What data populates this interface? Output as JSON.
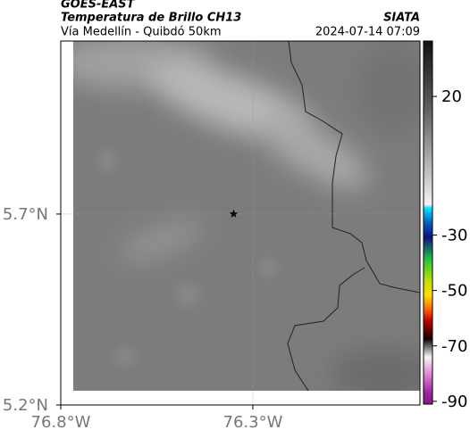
{
  "header": {
    "title": "GOES-EAST",
    "subtitle": "Temperatura de Brillo CH13",
    "source": "SIATA",
    "route": "Vía Medellín - Quibdó 50km",
    "timestamp": "2024-07-14 07:09"
  },
  "map": {
    "xlim": [
      -76.8,
      -75.865
    ],
    "ylim": [
      5.2,
      6.153
    ],
    "xticks": [
      {
        "value": -76.8,
        "label": "76.8°W"
      },
      {
        "value": -76.3,
        "label": "76.3°W"
      }
    ],
    "yticks": [
      {
        "value": 5.2,
        "label": "5.2°N"
      },
      {
        "value": 5.7,
        "label": "5.7°N"
      }
    ],
    "station": [
      -76.35,
      5.7
    ]
  },
  "colorbar": {
    "clim": [
      -91,
      40
    ],
    "ticks": [
      20,
      -30,
      -50,
      -70,
      -90
    ]
  }
}
